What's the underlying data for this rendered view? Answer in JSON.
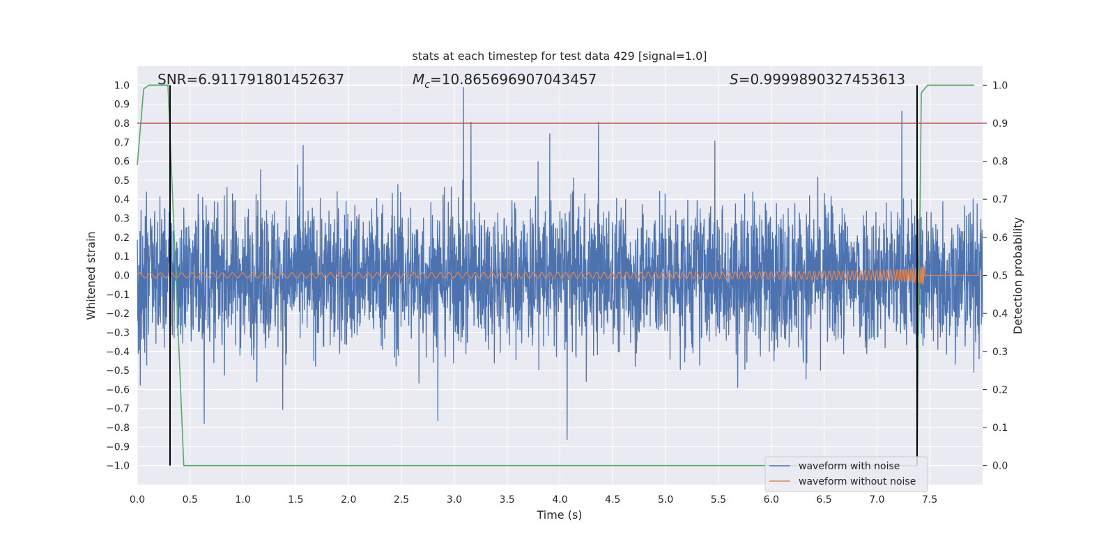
{
  "chart_data": {
    "type": "line",
    "title": "stats at each timestep for test data 429 [signal=1.0]",
    "xlabel": "Time (s)",
    "ylabel": "Whitened strain",
    "ylabel_right": "Detection probability",
    "xlim": [
      0.0,
      8.0
    ],
    "ylim": [
      -1.1,
      1.1
    ],
    "ylim_right": [
      -0.05,
      1.05
    ],
    "x_ticks": [
      "0.0",
      "0.5",
      "1.0",
      "1.5",
      "2.0",
      "2.5",
      "3.0",
      "3.5",
      "4.0",
      "4.5",
      "5.0",
      "5.5",
      "6.0",
      "6.5",
      "7.0",
      "7.5"
    ],
    "y_ticks": [
      "1.0",
      "0.9",
      "0.8",
      "0.7",
      "0.6",
      "0.5",
      "0.4",
      "0.3",
      "0.2",
      "0.1",
      "0.0",
      "−0.1",
      "−0.2",
      "−0.3",
      "−0.4",
      "−0.5",
      "−0.6",
      "−0.7",
      "−0.8",
      "−0.9",
      "−1.0"
    ],
    "y_ticks_right": [
      "1.0",
      "0.9",
      "0.8",
      "0.7",
      "0.6",
      "0.5",
      "0.4",
      "0.3",
      "0.2",
      "0.1",
      "0.0"
    ],
    "grid": true,
    "legend_position": "lower-right",
    "annotations": {
      "snr": "SNR=6.911791801452637",
      "mc_symbol": "M",
      "mc_sub": "c",
      "mc_value": "=10.865696907043457",
      "s_symbol": "S",
      "s_value": "=0.9999890327453613"
    },
    "series": [
      {
        "name": "waveform with noise",
        "color": "#4c72b0",
        "description": "dense noisy whitened strain, amplitude mostly within ±0.5, peaks near ±1.0"
      },
      {
        "name": "waveform without noise",
        "color": "#dd8452",
        "chirp": {
          "t_start": 0.0,
          "t_merge": 7.45,
          "amp_start": 0.013,
          "amp_peak": 0.27,
          "after_merge": 0.0
        }
      },
      {
        "name": "detection probability",
        "color": "#55a868",
        "axis": "right",
        "x": [
          0.0,
          0.06,
          0.11,
          0.29,
          0.44,
          7.38,
          7.42,
          7.48,
          7.92
        ],
        "y": [
          0.79,
          0.99,
          1.0,
          1.0,
          0.0,
          0.0,
          0.98,
          1.0,
          1.0
        ]
      }
    ],
    "threshold": {
      "value_right": 0.9,
      "color": "#c44e52"
    },
    "vertical_markers": [
      {
        "x": 0.31,
        "color": "#000000"
      },
      {
        "x": 7.38,
        "color": "#000000"
      }
    ]
  }
}
